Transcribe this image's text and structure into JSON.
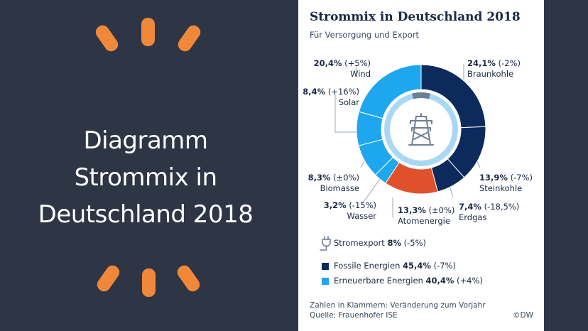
{
  "slide": {
    "title_line1": "Diagramm",
    "title_line2": "Strommix in Deutschland 2018"
  },
  "colors": {
    "background": "#2e3545",
    "accent": "#f0883a",
    "fossil": "#0c2b5c",
    "renewable": "#1ea6ef",
    "nuclear": "#e0502a"
  },
  "chart_data": {
    "type": "pie",
    "title": "Strommix in Deutschland 2018",
    "subtitle": "Für Versorgung und Export",
    "slices": [
      {
        "label": "Braunkohle",
        "value": 24.1,
        "value_text": "24,1%",
        "change": "(-2%)",
        "group": "fossil"
      },
      {
        "label": "Steinkohle",
        "value": 13.9,
        "value_text": "13,9%",
        "change": "(-7%)",
        "group": "fossil"
      },
      {
        "label": "Erdgas",
        "value": 7.4,
        "value_text": "7,4%",
        "change": "(-18,5%)",
        "group": "fossil"
      },
      {
        "label": "Atomenergie",
        "value": 13.3,
        "value_text": "13,3%",
        "change": "(±0%)",
        "group": "nuclear"
      },
      {
        "label": "Wasser",
        "value": 3.2,
        "value_text": "3,2%",
        "change": "(-15%)",
        "group": "renewable"
      },
      {
        "label": "Biomasse",
        "value": 8.3,
        "value_text": "8,3%",
        "change": "(±0%)",
        "group": "renewable"
      },
      {
        "label": "Solar",
        "value": 8.4,
        "value_text": "8,4%",
        "change": "(+16%)",
        "group": "renewable"
      },
      {
        "label": "Wind",
        "value": 20.4,
        "value_text": "20,4%",
        "change": "(+5%)",
        "group": "renewable"
      }
    ],
    "inner_ring": {
      "label": "Stromexport",
      "value": 8,
      "value_text": "8%",
      "change": "(-5%)"
    },
    "legend": [
      {
        "label": "Fossile Energien",
        "value_text": "45,4%",
        "change": "(-7%)",
        "group": "fossil"
      },
      {
        "label": "Erneuerbare Energien",
        "value_text": "40,4%",
        "change": "(+4%)",
        "group": "renewable"
      }
    ],
    "center_icon": "power-pylon-icon",
    "export_icon": "power-plug-icon",
    "notes": "Zahlen in Klammern: Veränderung zum Vorjahr",
    "source": "Quelle: Frauenhofer ISE",
    "credit": "©DW"
  }
}
